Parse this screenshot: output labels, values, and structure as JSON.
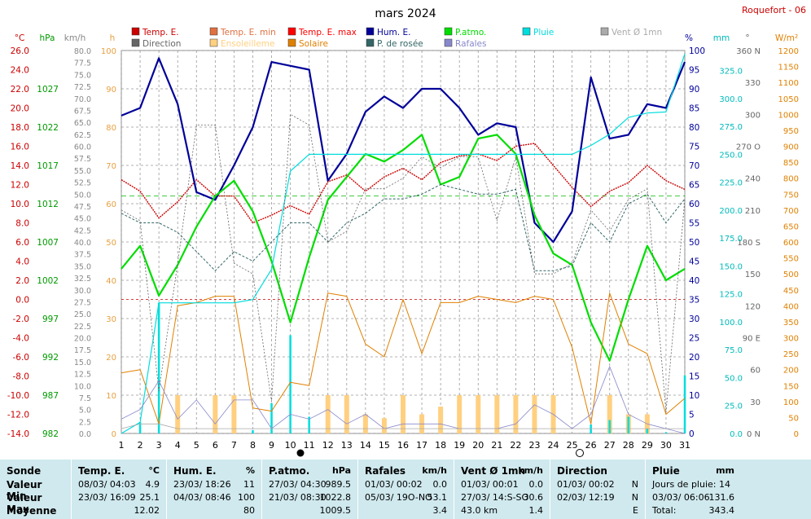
{
  "header": {
    "title": "mars 2024",
    "station": "Roquefort - 06"
  },
  "legend": [
    {
      "label": "Temp. E.",
      "color": "#cc0000"
    },
    {
      "label": "Temp. E. min",
      "color": "#e07040"
    },
    {
      "label": "Temp. E. max",
      "color": "#ff0000"
    },
    {
      "label": "Hum. E.",
      "color": "#000099"
    },
    {
      "label": "P.atmo.",
      "color": "#00dd00"
    },
    {
      "label": "Pluie",
      "color": "#00dddd"
    },
    {
      "label": "Vent Ø 1mn",
      "color": "#aaaaaa"
    },
    {
      "label": "Direction",
      "color": "#666666"
    },
    {
      "label": "Ensoleilleme",
      "color": "#ffd080"
    },
    {
      "label": "Solaire",
      "color": "#e08000"
    },
    {
      "label": "P. de rosée",
      "color": "#336666"
    },
    {
      "label": "Rafales",
      "color": "#8888cc"
    }
  ],
  "axis_units": {
    "temp": "°C",
    "pressure": "hPa",
    "wind": "km/h",
    "sun": "h",
    "hum": "%",
    "rain": "mm",
    "dir": "°",
    "solar": "W/m²"
  },
  "axis_ticks": {
    "temp": [
      "26.0",
      "24.0",
      "22.0",
      "20.0",
      "18.0",
      "16.0",
      "14.0",
      "12.0",
      "10.0",
      "8.0",
      "6.0",
      "4.0",
      "2.0",
      "0.0",
      "-2.0",
      "-4.0",
      "-6.0",
      "-8.0",
      "-10.0",
      "-12.0",
      "-14.0"
    ],
    "pressure": [
      "1027",
      "1022",
      "1017",
      "1012",
      "1007",
      "1002",
      "997",
      "992",
      "987",
      "982"
    ],
    "wind": [
      "80.0",
      "77.5",
      "75.0",
      "72.5",
      "70.0",
      "67.5",
      "65.0",
      "62.5",
      "60.0",
      "57.5",
      "55.0",
      "52.5",
      "50.0",
      "47.5",
      "45.0",
      "42.5",
      "40.0",
      "37.5",
      "35.0",
      "32.5",
      "30.0",
      "27.5",
      "25.0",
      "22.5",
      "20.0",
      "17.5",
      "15.0",
      "12.5",
      "10.0",
      "7.5",
      "5.0",
      "2.5",
      "0.0"
    ],
    "sun": [
      "100",
      "90",
      "80",
      "70",
      "60",
      "50",
      "40",
      "30",
      "20",
      "10",
      "0"
    ],
    "hum": [
      "100",
      "95",
      "90",
      "85",
      "80",
      "75",
      "70",
      "65",
      "60",
      "55",
      "50",
      "45",
      "40",
      "35",
      "30",
      "25",
      "20",
      "15",
      "10",
      "5",
      "0"
    ],
    "rain": [
      "325.0",
      "300.0",
      "275.0",
      "250.0",
      "225.0",
      "200.0",
      "175.0",
      "150.0",
      "125.0",
      "100.0",
      "75.0",
      "50.0",
      "25.0",
      "0.0"
    ],
    "dir": [
      "360 N",
      "330",
      "300",
      "270 O",
      "240",
      "210",
      "180 S",
      "150",
      "120",
      "90 E",
      "60",
      "30",
      "0 N"
    ],
    "solar": [
      "1200",
      "1150",
      "1100",
      "1050",
      "1000",
      "950",
      "900",
      "850",
      "800",
      "750",
      "700",
      "650",
      "600",
      "550",
      "500",
      "450",
      "400",
      "350",
      "300",
      "250",
      "200",
      "150",
      "100",
      "50",
      "0"
    ]
  },
  "chart_data": {
    "type": "line",
    "title": "mars 2024",
    "x": [
      1,
      2,
      3,
      4,
      5,
      6,
      7,
      8,
      9,
      10,
      11,
      12,
      13,
      14,
      15,
      16,
      17,
      18,
      19,
      20,
      21,
      22,
      23,
      24,
      25,
      26,
      27,
      28,
      29,
      30,
      31
    ],
    "xlim": [
      1,
      31
    ],
    "series": [
      {
        "name": "Temp. E.",
        "axis": "temp",
        "color": "#cc0000",
        "values": [
          12.5,
          11.3,
          8.5,
          10.2,
          12.5,
          10.8,
          10.8,
          8.0,
          8.8,
          9.8,
          8.9,
          12.3,
          13.0,
          11.3,
          12.8,
          13.7,
          12.5,
          14.3,
          15.0,
          15.2,
          14.5,
          16.0,
          16.3,
          14.0,
          11.7,
          9.7,
          11.3,
          12.2,
          14.0,
          12.4,
          11.5
        ]
      },
      {
        "name": "Hum. E.",
        "axis": "hum",
        "color": "#000099",
        "values": [
          83,
          85,
          98,
          86,
          63,
          61,
          70,
          80,
          97,
          96,
          95,
          66,
          73,
          84,
          88,
          85,
          90,
          90,
          85,
          78,
          81,
          80,
          55,
          50,
          58,
          93,
          77,
          78,
          86,
          85,
          97
        ]
      },
      {
        "name": "P.atmo.",
        "axis": "pressure",
        "color": "#00dd00",
        "values": [
          1003.5,
          1006.5,
          1000.0,
          1004.0,
          1009.0,
          1013.0,
          1015.0,
          1011.0,
          1004.5,
          996.5,
          1005.0,
          1012.5,
          1015.5,
          1018.5,
          1017.5,
          1019.0,
          1021.0,
          1014.5,
          1015.5,
          1020.5,
          1021.0,
          1018.5,
          1010.5,
          1005.5,
          1004.0,
          996.5,
          991.5,
          999.5,
          1006.5,
          1002.0,
          1003.5
        ]
      },
      {
        "name": "P. de rosée",
        "axis": "temp",
        "color": "#336666",
        "values": [
          9.0,
          8.0,
          8.0,
          7.0,
          5.0,
          3.0,
          5.0,
          4.0,
          6.0,
          8.0,
          8.0,
          6.0,
          8.0,
          9.0,
          10.5,
          10.5,
          11.0,
          12.0,
          11.5,
          11.0,
          11.0,
          11.5,
          3.0,
          3.0,
          3.5,
          8.0,
          6.0,
          10.0,
          11.0,
          8.0,
          10.5
        ]
      },
      {
        "name": "Solaire",
        "axis": "solar",
        "color": "#e08000",
        "values": [
          190,
          200,
          30,
          400,
          410,
          430,
          430,
          80,
          70,
          160,
          150,
          440,
          430,
          280,
          240,
          420,
          250,
          410,
          410,
          430,
          420,
          410,
          430,
          420,
          270,
          30,
          440,
          280,
          250,
          60,
          110
        ]
      },
      {
        "name": "Pluie",
        "axis": "rain",
        "color": "#00dddd",
        "values": [
          0,
          10,
          117,
          117,
          117,
          117,
          117,
          120,
          147,
          235,
          250,
          250,
          250,
          250,
          250,
          250,
          250,
          250,
          250,
          250,
          250,
          250,
          250,
          250,
          250,
          258,
          268,
          283,
          287,
          288,
          340
        ]
      },
      {
        "name": "Rafales",
        "axis": "wind",
        "color": "#8888cc",
        "values": [
          3,
          5,
          11,
          3,
          7,
          2,
          7,
          7,
          1,
          4,
          3,
          5,
          2,
          4,
          1,
          2,
          2,
          2,
          1,
          1,
          1,
          2,
          6,
          4,
          1,
          4,
          14,
          4,
          2,
          1,
          0
        ]
      },
      {
        "name": "Vent Ø 1mn",
        "axis": "wind",
        "color": "#aaaaaa",
        "values": [
          1,
          2,
          2,
          1,
          1,
          1,
          1,
          1,
          1,
          1,
          1,
          1,
          1,
          1,
          1,
          1,
          1,
          1,
          1,
          1,
          1,
          1,
          1,
          1,
          1,
          1,
          1,
          1,
          1,
          1,
          1
        ]
      },
      {
        "name": "Direction",
        "axis": "dir",
        "color": "#666666",
        "values": [
          210,
          200,
          40,
          160,
          290,
          290,
          160,
          150,
          30,
          300,
          290,
          180,
          190,
          230,
          230,
          240,
          260,
          250,
          260,
          260,
          200,
          260,
          150,
          150,
          160,
          210,
          190,
          220,
          230,
          20,
          220
        ]
      }
    ],
    "bars": [
      {
        "name": "Ensoleilleme",
        "axis": "sun",
        "color": "#ffd080",
        "values": [
          0,
          0,
          0,
          10,
          0,
          10,
          10,
          0,
          0,
          0,
          0,
          10,
          10,
          5,
          4,
          10,
          5,
          7,
          10,
          10,
          10,
          10,
          10,
          10,
          0,
          0,
          10,
          5,
          5,
          0,
          0
        ]
      },
      {
        "name": "Pluie",
        "axis": "rain",
        "color": "#00dddd",
        "values": [
          0,
          10,
          117,
          0,
          0,
          0,
          0,
          3,
          27,
          88,
          15,
          0,
          0,
          0,
          0,
          0,
          0,
          0,
          0,
          0,
          0,
          0,
          0,
          0,
          0,
          8,
          12,
          15,
          4,
          1,
          52
        ]
      }
    ],
    "ylim": {
      "temp": [
        -14,
        26
      ],
      "pressure": [
        982,
        1032
      ],
      "wind": [
        0,
        80
      ],
      "sun": [
        0,
        100
      ],
      "hum": [
        0,
        100
      ],
      "rain": [
        0,
        343
      ],
      "dir": [
        0,
        360
      ],
      "solar": [
        0,
        1200
      ]
    },
    "grid": true
  },
  "stats": {
    "sonde": {
      "title": "Sonde",
      "rows": [
        "Valeur Min",
        "Valeur Max",
        "Moyenne"
      ]
    },
    "temp": {
      "title": "Temp. E.",
      "unit": "°C",
      "rows": [
        [
          "08/03/  04:03",
          "4.9"
        ],
        [
          "23/03/  16:09",
          "25.1"
        ],
        [
          "",
          "12.02"
        ]
      ]
    },
    "hum": {
      "title": "Hum. E.",
      "unit": "%",
      "rows": [
        [
          "23/03/  18:26",
          "11"
        ],
        [
          "04/03/  08:46",
          "100"
        ],
        [
          "",
          "80"
        ]
      ]
    },
    "patmo": {
      "title": "P.atmo.",
      "unit": "hPa",
      "rows": [
        [
          "27/03/  04:30",
          "989.5"
        ],
        [
          "21/03/  08:30",
          "1022.8"
        ],
        [
          "",
          "1009.5"
        ]
      ]
    },
    "rafales": {
      "title": "Rafales",
      "unit": "km/h",
      "rows": [
        [
          "01/03/  00:02",
          "0.0"
        ],
        [
          "05/03/  19O-NO",
          "53.1"
        ],
        [
          "",
          "3.4"
        ]
      ]
    },
    "vent": {
      "title": "Vent Ø 1mn",
      "unit": "km/h",
      "rows": [
        [
          "01/03/  00:01",
          "0.0"
        ],
        [
          "27/03/  14:S-SO",
          "30.6"
        ],
        [
          "43.0 km",
          "1.4"
        ]
      ]
    },
    "direction": {
      "title": "Direction",
      "unit": "",
      "rows": [
        [
          "01/03/  00:02",
          "N"
        ],
        [
          "02/03/  12:19",
          "N"
        ],
        [
          "",
          "E"
        ]
      ]
    },
    "pluie": {
      "title": "Pluie",
      "unit": "mm",
      "rows": [
        [
          "Jours de pluie: 14",
          ""
        ],
        [
          "03/03/  06:06",
          "131.6"
        ],
        [
          "Total:",
          "343.4"
        ]
      ]
    }
  }
}
